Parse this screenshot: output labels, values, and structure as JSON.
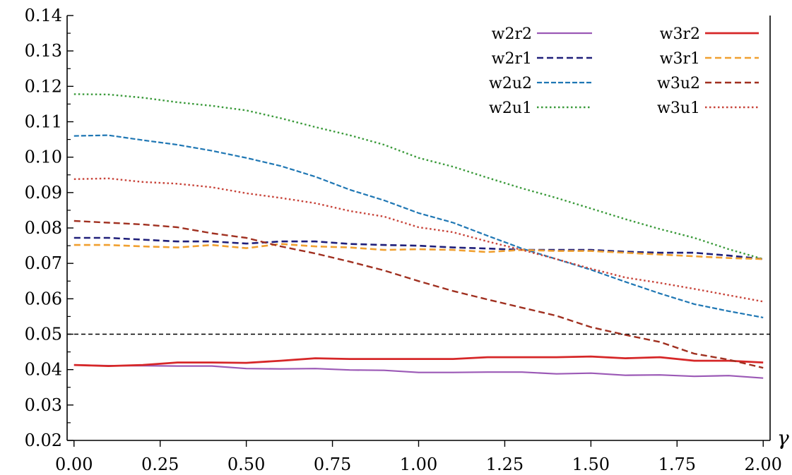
{
  "chart_data": {
    "type": "line",
    "title": "",
    "xlabel": "γ",
    "ylabel": "",
    "xlim": [
      -0.02,
      2.02
    ],
    "ylim": [
      0.02,
      0.14
    ],
    "x_ticks": [
      0.0,
      0.25,
      0.5,
      0.75,
      1.0,
      1.25,
      1.5,
      1.75,
      2.0
    ],
    "x_tick_labels": [
      "0.00",
      "0.25",
      "0.50",
      "0.75",
      "1.00",
      "1.25",
      "1.50",
      "1.75",
      "2.00"
    ],
    "y_ticks": [
      0.02,
      0.03,
      0.04,
      0.05,
      0.06,
      0.07,
      0.08,
      0.09,
      0.1,
      0.11,
      0.12,
      0.13,
      0.14
    ],
    "y_tick_labels": [
      "0.02",
      "0.03",
      "0.04",
      "0.05",
      "0.06",
      "0.07",
      "0.08",
      "0.09",
      "0.10",
      "0.11",
      "0.12",
      "0.13",
      "0.14"
    ],
    "grid": false,
    "legend_position": "top-right",
    "reference_line": {
      "y": 0.05,
      "color": "#000000",
      "style": "dashed"
    },
    "x": [
      0.0,
      0.1,
      0.2,
      0.3,
      0.4,
      0.5,
      0.6,
      0.7,
      0.8,
      0.9,
      1.0,
      1.1,
      1.2,
      1.3,
      1.4,
      1.5,
      1.6,
      1.7,
      1.8,
      1.9,
      2.0
    ],
    "series": [
      {
        "name": "w2r2",
        "color": "#9b59b6",
        "style": "solid",
        "width": 2.2,
        "values": [
          0.0413,
          0.0411,
          0.0411,
          0.041,
          0.041,
          0.0403,
          0.0402,
          0.0403,
          0.0399,
          0.0398,
          0.0392,
          0.0392,
          0.0393,
          0.0393,
          0.0388,
          0.039,
          0.0384,
          0.0385,
          0.0381,
          0.0383,
          0.0376
        ]
      },
      {
        "name": "w2r1",
        "color": "#1f1f7a",
        "style": "dash",
        "width": 2.6,
        "values": [
          0.0772,
          0.0772,
          0.0767,
          0.0762,
          0.0762,
          0.0756,
          0.0762,
          0.0762,
          0.0755,
          0.0752,
          0.075,
          0.0745,
          0.0742,
          0.0738,
          0.0738,
          0.0738,
          0.0733,
          0.073,
          0.073,
          0.0722,
          0.0712
        ]
      },
      {
        "name": "w2u2",
        "color": "#1f77b4",
        "style": "dash-fine",
        "width": 2.2,
        "values": [
          0.106,
          0.1062,
          0.1048,
          0.1035,
          0.1018,
          0.0998,
          0.0975,
          0.0945,
          0.0908,
          0.0878,
          0.0842,
          0.0815,
          0.0778,
          0.0742,
          0.0712,
          0.0682,
          0.0648,
          0.0615,
          0.0585,
          0.0565,
          0.0547
        ]
      },
      {
        "name": "w2u1",
        "color": "#3a9a3a",
        "style": "dotted",
        "width": 2.4,
        "values": [
          0.1178,
          0.1177,
          0.1168,
          0.1155,
          0.1145,
          0.1132,
          0.111,
          0.1085,
          0.1062,
          0.1035,
          0.0998,
          0.0973,
          0.0942,
          0.0912,
          0.0885,
          0.0855,
          0.0825,
          0.0797,
          0.0772,
          0.074,
          0.0712
        ]
      },
      {
        "name": "w3r2",
        "color": "#d62728",
        "style": "solid",
        "width": 2.8,
        "values": [
          0.0413,
          0.041,
          0.0413,
          0.042,
          0.042,
          0.0419,
          0.0425,
          0.0432,
          0.043,
          0.043,
          0.043,
          0.043,
          0.0435,
          0.0435,
          0.0435,
          0.0437,
          0.0432,
          0.0435,
          0.0425,
          0.0425,
          0.042
        ]
      },
      {
        "name": "w3r1",
        "color": "#f0a030",
        "style": "dash",
        "width": 2.6,
        "values": [
          0.0752,
          0.0752,
          0.0748,
          0.0745,
          0.0752,
          0.0743,
          0.0755,
          0.0748,
          0.0745,
          0.0738,
          0.074,
          0.0738,
          0.0732,
          0.0738,
          0.0735,
          0.0735,
          0.073,
          0.0725,
          0.072,
          0.0715,
          0.0712
        ]
      },
      {
        "name": "w3u2",
        "color": "#a03020",
        "style": "dash",
        "width": 2.4,
        "values": [
          0.082,
          0.0815,
          0.081,
          0.0802,
          0.0785,
          0.0772,
          0.0748,
          0.0728,
          0.0705,
          0.068,
          0.065,
          0.0622,
          0.0598,
          0.0575,
          0.0552,
          0.052,
          0.0498,
          0.0478,
          0.0445,
          0.0428,
          0.0405
        ]
      },
      {
        "name": "w3u1",
        "color": "#c8443a",
        "style": "dotted",
        "width": 2.4,
        "values": [
          0.0938,
          0.094,
          0.093,
          0.0925,
          0.0915,
          0.0898,
          0.0885,
          0.087,
          0.0848,
          0.0832,
          0.0802,
          0.0788,
          0.0762,
          0.0738,
          0.0712,
          0.0685,
          0.066,
          0.0645,
          0.0628,
          0.061,
          0.0592
        ]
      }
    ]
  }
}
